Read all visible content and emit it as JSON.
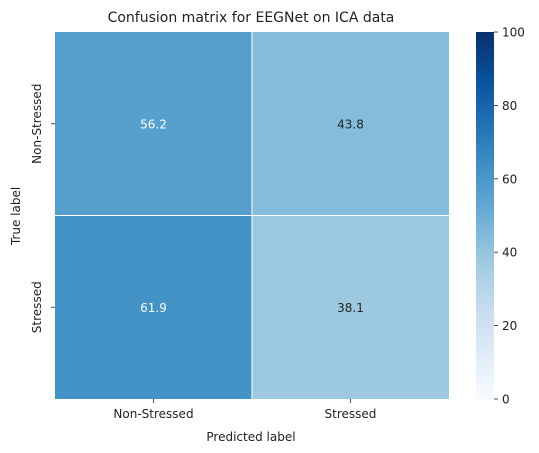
{
  "chart_data": {
    "type": "heatmap",
    "title": "Confusion matrix for EEGNet on ICA data",
    "xlabel": "Predicted label",
    "ylabel": "True label",
    "x_categories": [
      "Non-Stressed",
      "Stressed"
    ],
    "y_categories": [
      "Non-Stressed",
      "Stressed"
    ],
    "values": [
      [
        56.2,
        43.8
      ],
      [
        61.9,
        38.1
      ]
    ],
    "colorbar": {
      "range": [
        0,
        100
      ],
      "ticks": [
        0,
        20,
        40,
        60,
        80,
        100
      ],
      "colormap": "Blues"
    },
    "colors": {
      "low": "#f7fbff",
      "high": "#08306b",
      "cell_dark_text": "#262626",
      "cell_light_text": "#ffffff",
      "divider": "#ffffff"
    }
  }
}
